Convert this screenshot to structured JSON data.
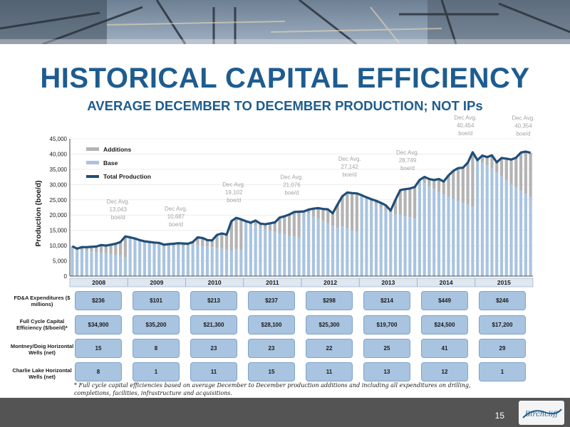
{
  "slide": {
    "title": "HISTORICAL CAPITAL EFFICIENCY",
    "subtitle": "AVERAGE DECEMBER TO DECEMBER PRODUCTION; NOT IPs",
    "footnote": "* Full cycle capital efficiencies based on average December to December production additions and including all expenditures on drilling, completions, facilities, infrastructure and acquisitions.",
    "page_number": "15",
    "logo_text": "Birchcliff"
  },
  "colors": {
    "accent": "#1e5c8f",
    "base": "#a9c4e0",
    "additions": "#b3b3b3",
    "total": "#1f4e79"
  },
  "chart_data": {
    "type": "bar",
    "stacked": true,
    "ylabel": "Production (boe/d)",
    "ylim": [
      0,
      45000
    ],
    "yticks": [
      0,
      5000,
      10000,
      15000,
      20000,
      25000,
      30000,
      35000,
      40000,
      45000
    ],
    "ytick_labels": [
      "0",
      "5,000",
      "10,000",
      "15,000",
      "20,000",
      "25,000",
      "30,000",
      "35,000",
      "40,000",
      "45,000"
    ],
    "legend": {
      "position": "top-left",
      "entries": [
        "Additions",
        "Base",
        "Total Production"
      ]
    },
    "years": [
      "2008",
      "2009",
      "2010",
      "2011",
      "2012",
      "2013",
      "2014",
      "2015"
    ],
    "months_per_year": 12,
    "total_production": [
      9800,
      9000,
      9500,
      9500,
      9600,
      9700,
      10200,
      10000,
      10300,
      10600,
      11200,
      13000,
      12700,
      12300,
      11800,
      11400,
      11200,
      11000,
      10900,
      10300,
      10500,
      10600,
      10800,
      10700,
      10600,
      11200,
      12700,
      12500,
      11800,
      11700,
      13500,
      14000,
      13600,
      18000,
      19100,
      18600,
      18000,
      17500,
      18200,
      17200,
      17000,
      17300,
      17600,
      19200,
      19600,
      20200,
      21000,
      21100,
      21200,
      21800,
      22100,
      22300,
      22000,
      21900,
      20600,
      23500,
      26200,
      27400,
      27200,
      27100,
      26500,
      25800,
      25200,
      24700,
      24000,
      23200,
      21500,
      25000,
      28200,
      28500,
      28700,
      29200,
      31500,
      32500,
      31800,
      31500,
      31800,
      31000,
      33000,
      34500,
      35400,
      35500,
      37200,
      40600,
      38000,
      39500,
      39000,
      39600,
      37300,
      38700,
      38500,
      38200,
      38800,
      40500,
      40800,
      40400
    ],
    "base_production": [
      9800,
      8700,
      8500,
      8300,
      8100,
      7800,
      7700,
      7500,
      7300,
      7000,
      6800,
      6200,
      12700,
      12000,
      11400,
      11000,
      10800,
      10500,
      10300,
      9800,
      9900,
      9700,
      9900,
      9600,
      10600,
      10400,
      10200,
      9900,
      9700,
      9500,
      9300,
      9000,
      8700,
      8400,
      8800,
      8600,
      18000,
      16900,
      16500,
      15800,
      15300,
      14900,
      14500,
      14100,
      13700,
      13300,
      13000,
      12700,
      21200,
      20500,
      19600,
      18900,
      18100,
      17300,
      16500,
      15800,
      16300,
      15600,
      15000,
      14700,
      26500,
      25200,
      24300,
      23400,
      22500,
      21600,
      20800,
      20300,
      20100,
      19700,
      19300,
      18900,
      31500,
      30500,
      29400,
      28500,
      27600,
      26800,
      26000,
      25300,
      24700,
      24000,
      23400,
      22800,
      38000,
      37300,
      36500,
      35400,
      34000,
      32800,
      31600,
      30200,
      29100,
      28100,
      27000,
      26000
    ],
    "dec_avg_annotations": [
      {
        "label": "Dec Avg.",
        "value": "13,043",
        "unit": "boe/d"
      },
      {
        "label": "Dec Avg.",
        "value": "10,687",
        "unit": "boe/d"
      },
      {
        "label": "Dec Avg.",
        "value": "19,102",
        "unit": "boe/d"
      },
      {
        "label": "Dec Avg.",
        "value": "21,076",
        "unit": "boe/d"
      },
      {
        "label": "Dec Avg.",
        "value": "27,142",
        "unit": "boe/d"
      },
      {
        "label": "Dec Avg.",
        "value": "28,749",
        "unit": "boe/d"
      },
      {
        "label": "Dec Avg.",
        "value": "40,454",
        "unit": "boe/d"
      },
      {
        "label": "Dec Avg.",
        "value": "40,354",
        "unit": "boe/d"
      }
    ]
  },
  "table": {
    "rows": [
      {
        "label": "FD&A Expenditures ($ millions)",
        "values": [
          "$236",
          "$101",
          "$213",
          "$237",
          "$298",
          "$214",
          "$449",
          "$246"
        ]
      },
      {
        "label": "Full Cycle Capital Efficiency ($/boe/d)*",
        "values": [
          "$34,900",
          "$35,200",
          "$21,300",
          "$28,100",
          "$25,300",
          "$19,700",
          "$24,500",
          "$17,200"
        ]
      },
      {
        "label": "Montney/Doig Horizontal Wells (net)",
        "values": [
          "15",
          "8",
          "23",
          "23",
          "22",
          "25",
          "41",
          "29"
        ]
      },
      {
        "label": "Charlie Lake Horizontal Wells (net)",
        "values": [
          "8",
          "1",
          "11",
          "15",
          "11",
          "13",
          "12",
          "1"
        ]
      }
    ]
  }
}
